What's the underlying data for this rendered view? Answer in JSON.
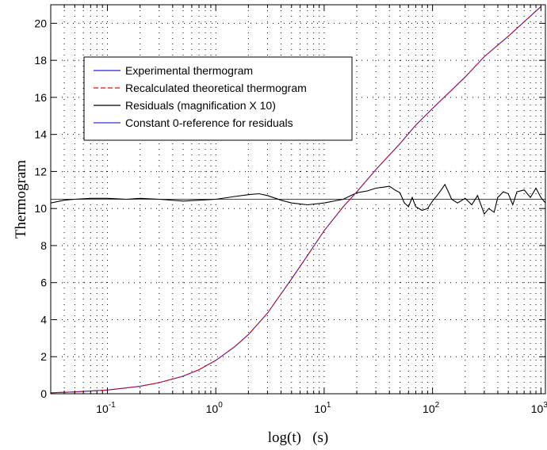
{
  "chart_data": {
    "type": "line",
    "xlabel": "log(t)   (s)",
    "ylabel": "Thermogram",
    "x_scale": "log",
    "xlim": [
      0.03,
      1100
    ],
    "ylim": [
      0,
      21
    ],
    "grid": true,
    "legend_position": "top-left",
    "x_ticks": [
      {
        "base": "10",
        "exp": "-1"
      },
      {
        "base": "10",
        "exp": "0"
      },
      {
        "base": "10",
        "exp": "1"
      },
      {
        "base": "10",
        "exp": "2"
      },
      {
        "base": "10",
        "exp": "3"
      }
    ],
    "y_ticks": [
      "0",
      "2",
      "4",
      "6",
      "8",
      "10",
      "12",
      "14",
      "16",
      "18",
      "20"
    ],
    "colors": {
      "experimental": "#2020e0",
      "recalculated": "#e01010",
      "residuals": "#000000",
      "reference": "#3030e0"
    },
    "series": [
      {
        "name": "Experimental thermogram",
        "x": [
          0.03,
          0.05,
          0.1,
          0.2,
          0.3,
          0.5,
          0.7,
          1,
          1.5,
          2,
          3,
          5,
          7,
          10,
          15,
          20,
          30,
          50,
          70,
          100,
          200,
          300,
          500,
          1000
        ],
        "y": [
          0.05,
          0.1,
          0.2,
          0.4,
          0.6,
          0.95,
          1.3,
          1.8,
          2.55,
          3.2,
          4.35,
          6.2,
          7.45,
          8.8,
          10.1,
          10.9,
          12.1,
          13.5,
          14.5,
          15.4,
          17.1,
          18.2,
          19.3,
          20.9
        ]
      },
      {
        "name": "Recalculated theoretical thermogram",
        "x": [
          0.03,
          0.05,
          0.1,
          0.2,
          0.3,
          0.5,
          0.7,
          1,
          1.5,
          2,
          3,
          5,
          7,
          10,
          15,
          20,
          30,
          50,
          70,
          100,
          200,
          300,
          500,
          1000
        ],
        "y": [
          0.05,
          0.1,
          0.2,
          0.4,
          0.6,
          0.95,
          1.3,
          1.8,
          2.55,
          3.2,
          4.35,
          6.2,
          7.45,
          8.8,
          10.1,
          10.9,
          12.1,
          13.5,
          14.5,
          15.4,
          17.1,
          18.2,
          19.3,
          20.9
        ]
      },
      {
        "name": "Residuals (magnification X 10)",
        "x": [
          0.03,
          0.04,
          0.05,
          0.07,
          0.1,
          0.15,
          0.2,
          0.3,
          0.5,
          0.7,
          1,
          1.5,
          2,
          2.5,
          3,
          4,
          5,
          7,
          10,
          15,
          20,
          25,
          30,
          35,
          40,
          45,
          50,
          55,
          60,
          65,
          70,
          80,
          90,
          100,
          110,
          120,
          130,
          140,
          150,
          170,
          200,
          230,
          260,
          300,
          330,
          370,
          400,
          450,
          500,
          550,
          600,
          700,
          800,
          900,
          1000,
          1100
        ],
        "y": [
          10.3,
          10.45,
          10.5,
          10.55,
          10.55,
          10.5,
          10.55,
          10.5,
          10.4,
          10.45,
          10.5,
          10.65,
          10.75,
          10.8,
          10.7,
          10.45,
          10.3,
          10.2,
          10.3,
          10.5,
          10.85,
          10.95,
          11.1,
          11.15,
          11.2,
          11.0,
          10.85,
          10.3,
          10.1,
          10.6,
          10.1,
          9.9,
          10.0,
          10.4,
          10.7,
          11.0,
          11.3,
          10.9,
          10.5,
          10.3,
          10.55,
          10.2,
          10.7,
          9.7,
          10.0,
          9.8,
          10.6,
          10.9,
          10.8,
          10.2,
          10.9,
          11.0,
          10.6,
          11.1,
          10.6,
          10.3
        ]
      },
      {
        "name": "Constant 0-reference for residuals",
        "x": [
          0.03,
          1100
        ],
        "y": [
          10.5,
          10.5
        ]
      }
    ]
  }
}
